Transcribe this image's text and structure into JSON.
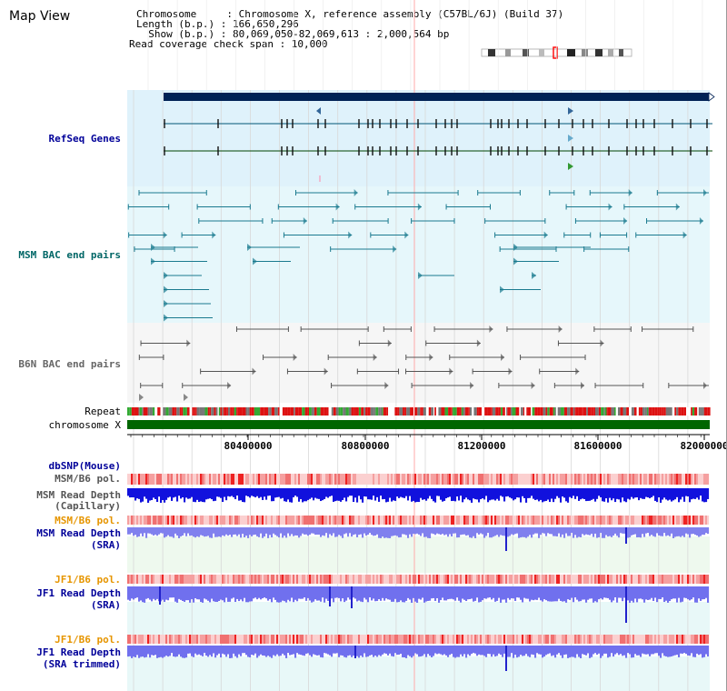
{
  "header": {
    "title": "Map View",
    "chromosome_line": "Chromosome     : Chromosome X, reference assembly (C57BL/6J) (Build 37)",
    "length_line": "Length (b.p.) : 166,650,296",
    "show_line": "  Show (b.p.) : 80,069,050-82,069,613 : 2,000,564 bp",
    "span_line": "Read coverage check span : 10,000"
  },
  "tracks": {
    "refseq": "RefSeq Genes",
    "msm_bac": "MSM BAC end pairs",
    "b6n_bac": "B6N BAC end pairs",
    "repeat": "Repeat",
    "chromosome": "chromosome X",
    "dbsnp": "dbSNP(Mouse)",
    "msm_b6_pol_1": "MSM/B6 pol.",
    "msm_depth_cap_1": "MSM Read Depth",
    "msm_depth_cap_2": "(Capillary)",
    "msm_b6_pol_2": "MSM/B6 pol.",
    "msm_depth_sra_1": "MSM Read Depth",
    "msm_depth_sra_2": "(SRA)",
    "jf1_b6_pol_1": "JF1/B6 pol.",
    "jf1_depth_sra_1": "JF1 Read Depth",
    "jf1_depth_sra_2": "(SRA)",
    "jf1_b6_pol_2": "JF1/B6 pol.",
    "jf1_depth_trim_1": "JF1 Read Depth",
    "jf1_depth_trim_2": "(SRA trimmed)"
  },
  "ruler": {
    "ticks": [
      "80400000",
      "80800000",
      "81200000",
      "81600000",
      "82000000"
    ]
  },
  "colors": {
    "refseq_bg": "#dff2fb",
    "msm_bac_bg": "#e6f7fb",
    "b6n_bg": "#f6f6f6",
    "label_blue": "#000099",
    "label_orange": "#e69500",
    "label_teal": "#006666",
    "chrom_green": "#006600",
    "depth_blue": "#0000dd",
    "depth_light": "#7070ee"
  }
}
